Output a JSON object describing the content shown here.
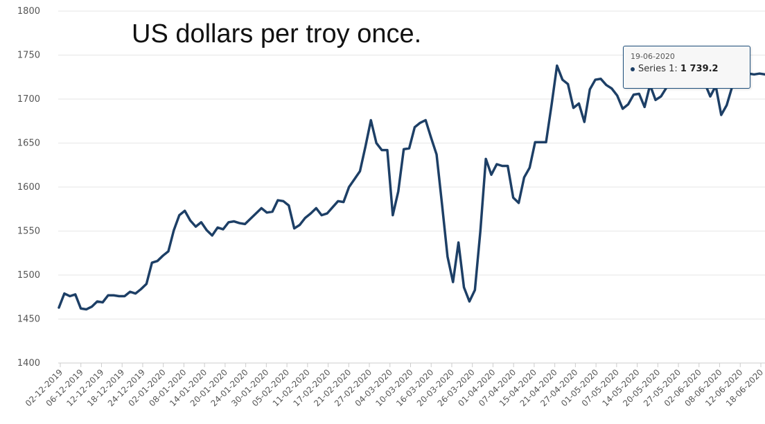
{
  "chart_data": {
    "type": "line",
    "title": "US dollars per troy once.",
    "xlabel": "",
    "ylabel": "",
    "ylim": [
      1400,
      1800
    ],
    "y_ticks": [
      1400,
      1450,
      1500,
      1550,
      1600,
      1650,
      1700,
      1750,
      1800
    ],
    "x_ticks": [
      "02-12-2019",
      "06-12-2019",
      "12-12-2019",
      "18-12-2019",
      "24-12-2019",
      "02-01-2020",
      "08-01-2020",
      "14-01-2020",
      "20-01-2020",
      "24-01-2020",
      "30-01-2020",
      "05-02-2020",
      "11-02-2020",
      "17-02-2020",
      "21-02-2020",
      "27-02-2020",
      "04-03-2020",
      "10-03-2020",
      "16-03-2020",
      "20-03-2020",
      "26-03-2020",
      "01-04-2020",
      "07-04-2020",
      "15-04-2020",
      "21-04-2020",
      "27-04-2020",
      "01-05-2020",
      "07-05-2020",
      "14-05-2020",
      "20-05-2020",
      "27-05-2020",
      "02-06-2020",
      "08-06-2020",
      "12-06-2020",
      "18-06-2020"
    ],
    "grid": true,
    "series": [
      {
        "color": "#1d3f66",
        "values": [
          1463,
          1479,
          1476,
          1478,
          1462,
          1461,
          1464,
          1470,
          1469,
          1477,
          1477,
          1476,
          1476,
          1481,
          1479,
          1484,
          1490,
          1514,
          1516,
          1522,
          1527,
          1551,
          1568,
          1573,
          1562,
          1555,
          1560,
          1551,
          1545,
          1554,
          1552,
          1560,
          1561,
          1559,
          1558,
          1564,
          1570,
          1576,
          1571,
          1572,
          1585,
          1584,
          1579,
          1553,
          1557,
          1565,
          1570,
          1576,
          1568,
          1570,
          1577,
          1584,
          1583,
          1600,
          1609,
          1618,
          1646,
          1676,
          1650,
          1642,
          1642,
          1568,
          1595,
          1643,
          1644,
          1668,
          1673,
          1676,
          1656,
          1637,
          1580,
          1521,
          1492,
          1537,
          1486,
          1470,
          1483,
          1550,
          1632,
          1614,
          1626,
          1624,
          1624,
          1588,
          1582,
          1611,
          1622,
          1651,
          1651,
          1651,
          1693,
          1738,
          1722,
          1717,
          1690,
          1695,
          1674,
          1711,
          1722,
          1723,
          1716,
          1712,
          1704,
          1689,
          1694,
          1705,
          1706,
          1691,
          1716,
          1699,
          1703,
          1713,
          1722,
          1727,
          1724,
          1730,
          1732,
          1728,
          1718,
          1703,
          1715,
          1682,
          1693,
          1714,
          1722,
          1727,
          1729,
          1728,
          1729,
          1728
        ]
      }
    ]
  },
  "tooltip": {
    "date": "19-06-2020",
    "label": "Series 1: ",
    "value": "1 739.2"
  }
}
